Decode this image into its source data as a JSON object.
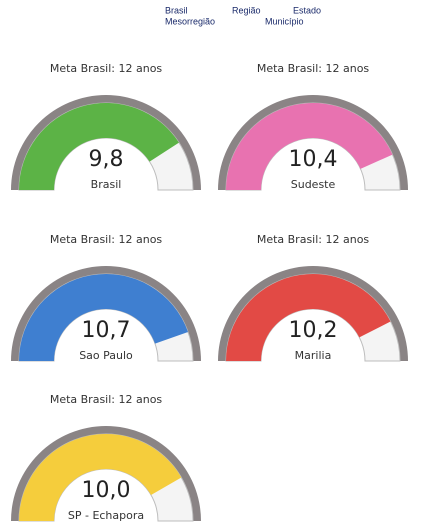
{
  "header": {
    "levels": [
      "Brasil",
      "Região",
      "Estado",
      "Mesorregião",
      "Município"
    ]
  },
  "chart_data": [
    {
      "type": "gauge",
      "title": "Meta Brasil: 12 anos",
      "category": "Brasil",
      "value": 9.8,
      "value_label": "9,8",
      "color": "#5cb346",
      "ylim": [
        0,
        12
      ]
    },
    {
      "type": "gauge",
      "title": "Meta Brasil: 12 anos",
      "category": "Sudeste",
      "value": 10.4,
      "value_label": "10,4",
      "color": "#e872b0",
      "ylim": [
        0,
        12
      ]
    },
    {
      "type": "gauge",
      "title": "Meta Brasil: 12 anos",
      "category": "Sao Paulo",
      "value": 10.7,
      "value_label": "10,7",
      "color": "#3f7fd0",
      "ylim": [
        0,
        12
      ]
    },
    {
      "type": "gauge",
      "title": "Meta Brasil: 12 anos",
      "category": "Marilia",
      "value": 10.2,
      "value_label": "10,2",
      "color": "#e24a45",
      "ylim": [
        0,
        12
      ]
    },
    {
      "type": "gauge",
      "title": "Meta Brasil: 12 anos",
      "category": "SP - Echapora",
      "value": 10.0,
      "value_label": "10,0",
      "color": "#f5cd3c",
      "ylim": [
        0,
        12
      ]
    }
  ]
}
